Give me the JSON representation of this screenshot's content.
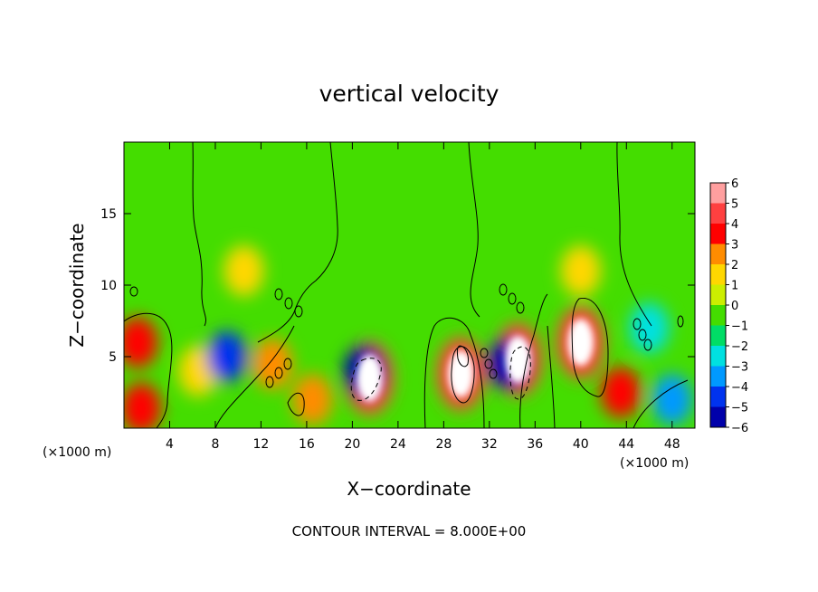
{
  "chart_data": {
    "type": "heatmap",
    "title": "vertical velocity",
    "xlabel": "X−coordinate",
    "ylabel": "Z−coordinate",
    "x_unit": "(×1000 m)",
    "y_unit": "(×1000 m)",
    "note": "CONTOUR INTERVAL = 8.000E+00",
    "xlim": [
      0,
      50
    ],
    "ylim": [
      0,
      20
    ],
    "x_ticks": [
      {
        "value": 4,
        "label": "4"
      },
      {
        "value": 8,
        "label": "8"
      },
      {
        "value": 12,
        "label": "12"
      },
      {
        "value": 16,
        "label": "16"
      },
      {
        "value": 20,
        "label": "20"
      },
      {
        "value": 24,
        "label": "24"
      },
      {
        "value": 28,
        "label": "28"
      },
      {
        "value": 32,
        "label": "32"
      },
      {
        "value": 36,
        "label": "36"
      },
      {
        "value": 40,
        "label": "40"
      },
      {
        "value": 44,
        "label": "44"
      },
      {
        "value": 48,
        "label": "48"
      }
    ],
    "y_ticks": [
      {
        "value": 5,
        "label": "5"
      },
      {
        "value": 10,
        "label": "10"
      },
      {
        "value": 15,
        "label": "15"
      }
    ],
    "colorbar": {
      "range": [
        -6,
        6
      ],
      "levels": [
        "6",
        "5",
        "4",
        "3",
        "2",
        "1",
        "0",
        "−1",
        "−2",
        "−3",
        "−4",
        "−5",
        "−6"
      ],
      "colors": [
        "#ff9f9f",
        "#ff4040",
        "#ff0000",
        "#ff8c00",
        "#ffd700",
        "#ccee00",
        "#44dd00",
        "#00dd66",
        "#00e0e0",
        "#0099ff",
        "#0033ee",
        "#0000aa",
        "#7700aa"
      ]
    },
    "features": [
      {
        "x": 1.2,
        "z": 6.0,
        "value": 3.5
      },
      {
        "x": 1.5,
        "z": 1.4,
        "value": 4.0
      },
      {
        "x": 6.5,
        "z": 4.0,
        "value": 1.5
      },
      {
        "x": 9.0,
        "z": 5.0,
        "value": -4.5
      },
      {
        "x": 10.5,
        "z": 11.0,
        "value": 1.5
      },
      {
        "x": 13.0,
        "z": 4.5,
        "value": 3.0
      },
      {
        "x": 16.5,
        "z": 2.0,
        "value": 2.5
      },
      {
        "x": 21.5,
        "z": 3.5,
        "value": 8.0
      },
      {
        "x": 21.0,
        "z": 4.0,
        "value": -5.0
      },
      {
        "x": 29.5,
        "z": 3.8,
        "value": 8.0
      },
      {
        "x": 34.5,
        "z": 4.8,
        "value": 8.0
      },
      {
        "x": 33.5,
        "z": 4.5,
        "value": -5.0
      },
      {
        "x": 40.0,
        "z": 6.0,
        "value": 9.0
      },
      {
        "x": 40.0,
        "z": 11.0,
        "value": 2.0
      },
      {
        "x": 43.5,
        "z": 2.5,
        "value": 4.0
      },
      {
        "x": 46.0,
        "z": 7.0,
        "value": -2.5
      },
      {
        "x": 48.0,
        "z": 2.0,
        "value": -3.5
      }
    ]
  }
}
